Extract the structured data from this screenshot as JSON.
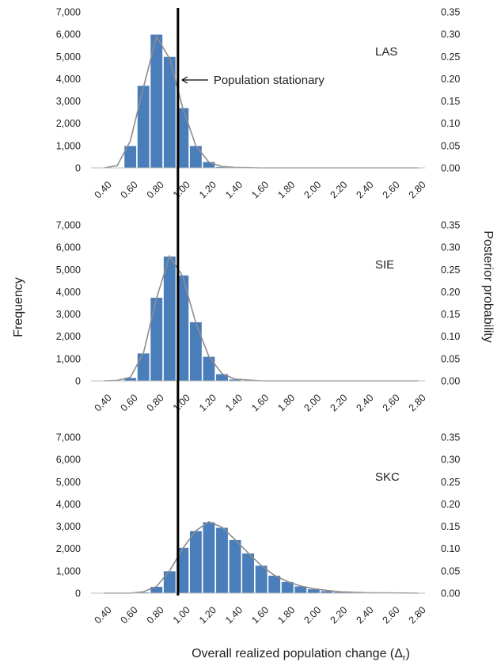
{
  "figure": {
    "xlabel": "Overall realized population change (Δ",
    "xlabel_sub": "r",
    "xlabel_close": ")",
    "ylabel_left": "Frequency",
    "ylabel_right": "Posterior probability",
    "annotation": "Population stationary",
    "reference_x": 1.0,
    "colors": {
      "bar": "#4a7ebb",
      "bar_edge": "#ffffff",
      "line": "#8c8c8c",
      "ref": "#000000"
    }
  },
  "chart_data": [
    {
      "type": "bar",
      "label": "LAS",
      "x_ticks": [
        "0.40",
        "0.60",
        "0.80",
        "1.00",
        "1.20",
        "1.40",
        "1.60",
        "1.80",
        "2.00",
        "2.20",
        "2.40",
        "2.60",
        "2.80"
      ],
      "x_range": [
        0.3,
        2.85
      ],
      "ylim": [
        0,
        7000
      ],
      "y_ticks": [
        "0",
        "1,000",
        "2,000",
        "3,000",
        "4,000",
        "5,000",
        "6,000",
        "7,000"
      ],
      "y2lim": [
        0,
        0.35
      ],
      "y2_ticks": [
        "0.00",
        "0.05",
        "0.10",
        "0.15",
        "0.20",
        "0.25",
        "0.30",
        "0.35"
      ],
      "bars": [
        {
          "x": 0.4,
          "y": 0
        },
        {
          "x": 0.5,
          "y": 30
        },
        {
          "x": 0.6,
          "y": 1000
        },
        {
          "x": 0.7,
          "y": 3700
        },
        {
          "x": 0.8,
          "y": 6000
        },
        {
          "x": 0.9,
          "y": 5000
        },
        {
          "x": 1.0,
          "y": 2700
        },
        {
          "x": 1.1,
          "y": 1000
        },
        {
          "x": 1.2,
          "y": 280
        },
        {
          "x": 1.3,
          "y": 60
        },
        {
          "x": 1.4,
          "y": 15
        },
        {
          "x": 1.5,
          "y": 5
        }
      ],
      "curve": [
        {
          "x": 0.4,
          "y": 0.0
        },
        {
          "x": 0.5,
          "y": 0.005
        },
        {
          "x": 0.6,
          "y": 0.06
        },
        {
          "x": 0.7,
          "y": 0.18
        },
        {
          "x": 0.8,
          "y": 0.295
        },
        {
          "x": 0.9,
          "y": 0.245
        },
        {
          "x": 1.0,
          "y": 0.135
        },
        {
          "x": 1.1,
          "y": 0.05
        },
        {
          "x": 1.2,
          "y": 0.013
        },
        {
          "x": 1.3,
          "y": 0.003
        },
        {
          "x": 1.4,
          "y": 0.001
        },
        {
          "x": 1.6,
          "y": 0.0
        },
        {
          "x": 2.8,
          "y": 0.0
        }
      ]
    },
    {
      "type": "bar",
      "label": "SIE",
      "x_ticks": [
        "0.40",
        "0.60",
        "0.80",
        "1.00",
        "1.20",
        "1.40",
        "1.60",
        "1.80",
        "2.00",
        "2.20",
        "2.40",
        "2.60",
        "2.80"
      ],
      "x_range": [
        0.3,
        2.85
      ],
      "ylim": [
        0,
        7000
      ],
      "y_ticks": [
        "0",
        "1,000",
        "2,000",
        "3,000",
        "4,000",
        "5,000",
        "6,000",
        "7,000"
      ],
      "y2lim": [
        0,
        0.35
      ],
      "y2_ticks": [
        "0.00",
        "0.05",
        "0.10",
        "0.15",
        "0.20",
        "0.25",
        "0.30",
        "0.35"
      ],
      "bars": [
        {
          "x": 0.4,
          "y": 0
        },
        {
          "x": 0.5,
          "y": 20
        },
        {
          "x": 0.6,
          "y": 150
        },
        {
          "x": 0.7,
          "y": 1250
        },
        {
          "x": 0.8,
          "y": 3750
        },
        {
          "x": 0.9,
          "y": 5600
        },
        {
          "x": 1.0,
          "y": 4750
        },
        {
          "x": 1.1,
          "y": 2650
        },
        {
          "x": 1.2,
          "y": 1100
        },
        {
          "x": 1.3,
          "y": 320
        },
        {
          "x": 1.4,
          "y": 80
        },
        {
          "x": 1.5,
          "y": 20
        }
      ],
      "curve": [
        {
          "x": 0.4,
          "y": 0.0
        },
        {
          "x": 0.5,
          "y": 0.001
        },
        {
          "x": 0.6,
          "y": 0.008
        },
        {
          "x": 0.7,
          "y": 0.062
        },
        {
          "x": 0.8,
          "y": 0.185
        },
        {
          "x": 0.9,
          "y": 0.28
        },
        {
          "x": 1.0,
          "y": 0.235
        },
        {
          "x": 1.1,
          "y": 0.13
        },
        {
          "x": 1.2,
          "y": 0.055
        },
        {
          "x": 1.3,
          "y": 0.016
        },
        {
          "x": 1.4,
          "y": 0.004
        },
        {
          "x": 1.6,
          "y": 0.0
        },
        {
          "x": 2.8,
          "y": 0.0
        }
      ]
    },
    {
      "type": "bar",
      "label": "SKC",
      "x_ticks": [
        "0.40",
        "0.60",
        "0.80",
        "1.00",
        "1.20",
        "1.40",
        "1.60",
        "1.80",
        "2.00",
        "2.20",
        "2.40",
        "2.60",
        "2.80"
      ],
      "x_range": [
        0.3,
        2.85
      ],
      "ylim": [
        0,
        7000
      ],
      "y_ticks": [
        "0",
        "1,000",
        "2,000",
        "3,000",
        "4,000",
        "5,000",
        "6,000",
        "7,000"
      ],
      "y2lim": [
        0,
        0.35
      ],
      "y2_ticks": [
        "0.00",
        "0.05",
        "0.10",
        "0.15",
        "0.20",
        "0.25",
        "0.30",
        "0.35"
      ],
      "bars": [
        {
          "x": 0.7,
          "y": 50
        },
        {
          "x": 0.8,
          "y": 300
        },
        {
          "x": 0.9,
          "y": 1000
        },
        {
          "x": 1.0,
          "y": 2050
        },
        {
          "x": 1.1,
          "y": 2800
        },
        {
          "x": 1.2,
          "y": 3200
        },
        {
          "x": 1.3,
          "y": 2950
        },
        {
          "x": 1.4,
          "y": 2400
        },
        {
          "x": 1.5,
          "y": 1800
        },
        {
          "x": 1.6,
          "y": 1250
        },
        {
          "x": 1.7,
          "y": 800
        },
        {
          "x": 1.8,
          "y": 520
        },
        {
          "x": 1.9,
          "y": 320
        },
        {
          "x": 2.0,
          "y": 190
        },
        {
          "x": 2.1,
          "y": 110
        },
        {
          "x": 2.2,
          "y": 60
        },
        {
          "x": 2.3,
          "y": 35
        },
        {
          "x": 2.4,
          "y": 18
        },
        {
          "x": 2.5,
          "y": 8
        }
      ],
      "curve": [
        {
          "x": 0.4,
          "y": 0.0
        },
        {
          "x": 0.6,
          "y": 0.0
        },
        {
          "x": 0.7,
          "y": 0.003
        },
        {
          "x": 0.8,
          "y": 0.015
        },
        {
          "x": 0.9,
          "y": 0.05
        },
        {
          "x": 1.0,
          "y": 0.1
        },
        {
          "x": 1.1,
          "y": 0.14
        },
        {
          "x": 1.2,
          "y": 0.16
        },
        {
          "x": 1.3,
          "y": 0.148
        },
        {
          "x": 1.4,
          "y": 0.12
        },
        {
          "x": 1.5,
          "y": 0.09
        },
        {
          "x": 1.6,
          "y": 0.062
        },
        {
          "x": 1.7,
          "y": 0.04
        },
        {
          "x": 1.8,
          "y": 0.026
        },
        {
          "x": 1.9,
          "y": 0.016
        },
        {
          "x": 2.0,
          "y": 0.01
        },
        {
          "x": 2.1,
          "y": 0.006
        },
        {
          "x": 2.2,
          "y": 0.003
        },
        {
          "x": 2.4,
          "y": 0.001
        },
        {
          "x": 2.8,
          "y": 0.0
        }
      ]
    }
  ]
}
